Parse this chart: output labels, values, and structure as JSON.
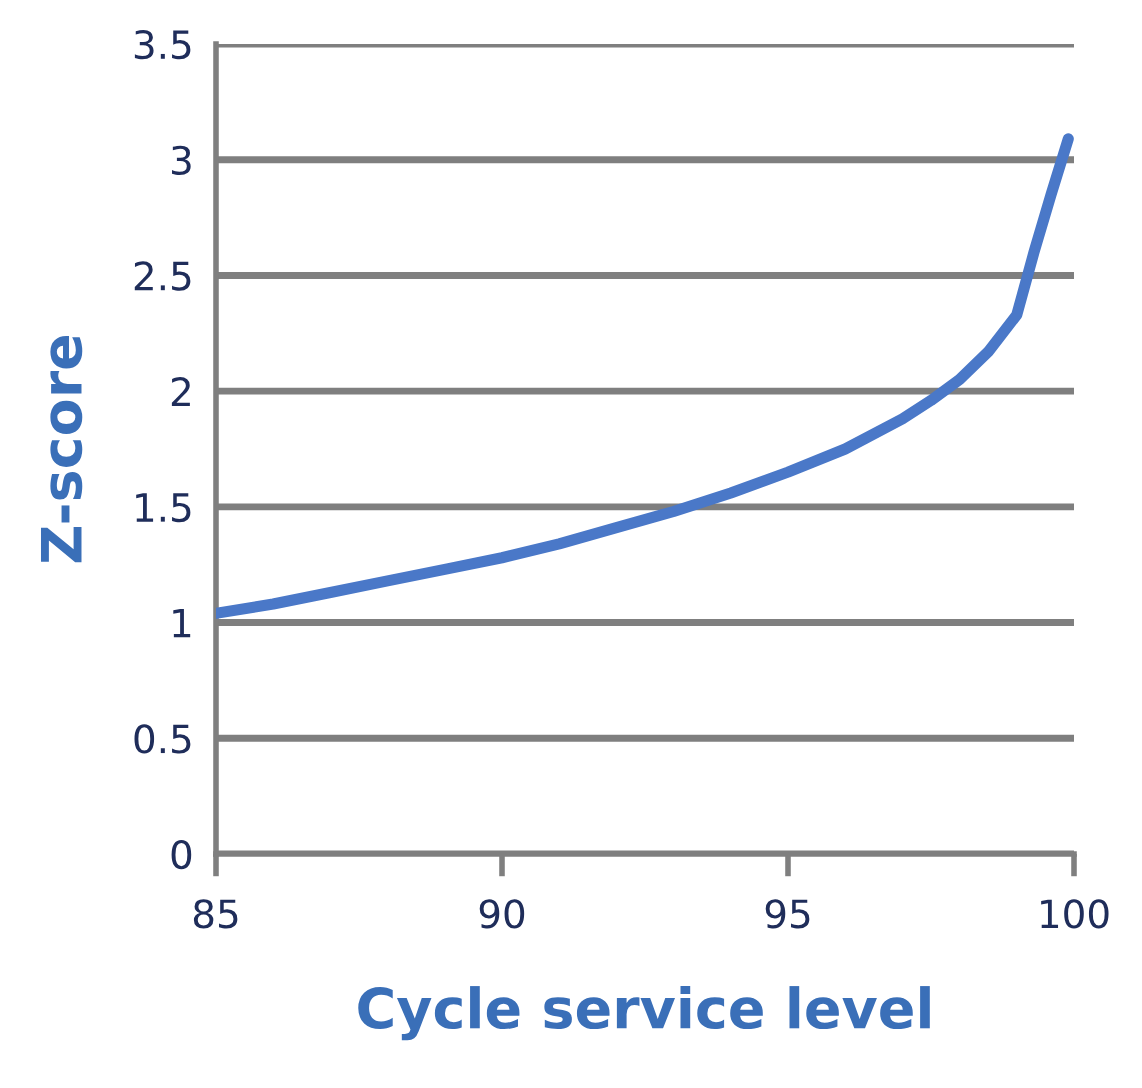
{
  "chart_data": {
    "type": "line",
    "xlabel": "Cycle service level",
    "ylabel": "Z-score",
    "x": [
      85,
      86,
      87,
      88,
      89,
      90,
      91,
      92,
      93,
      94,
      95,
      96,
      97,
      97.5,
      98,
      98.5,
      99,
      99.3,
      99.6,
      99.9
    ],
    "series": [
      {
        "color": "#4a78c8",
        "values": [
          1.04,
          1.08,
          1.13,
          1.18,
          1.23,
          1.28,
          1.34,
          1.41,
          1.48,
          1.56,
          1.65,
          1.75,
          1.88,
          1.96,
          2.05,
          2.17,
          2.33,
          2.6,
          2.85,
          3.09
        ]
      }
    ],
    "xlim": [
      85,
      100
    ],
    "xticks": [
      85,
      90,
      95,
      100
    ],
    "ylim": [
      0,
      3.5
    ],
    "yticks": [
      0,
      0.5,
      1,
      1.5,
      2,
      2.5,
      3,
      3.5
    ],
    "grid": "y",
    "legend": false,
    "marker": "none",
    "line_style": "solid"
  }
}
